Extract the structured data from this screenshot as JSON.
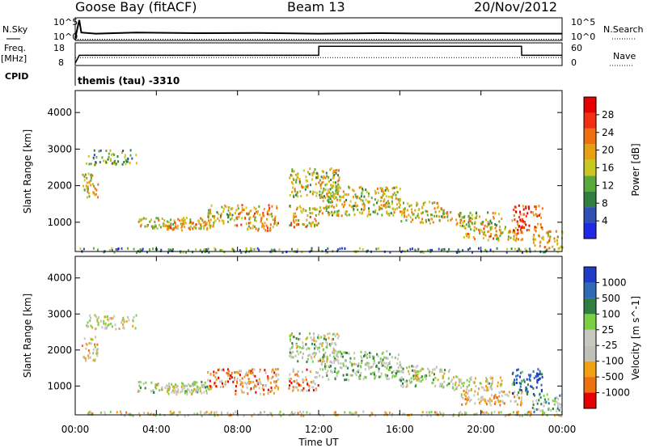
{
  "header": {
    "station": "Goose Bay (fitACF)",
    "beam": "Beam 13",
    "date": "20/Nov/2012"
  },
  "side_labels": {
    "nsky": "N.Sky",
    "freq": "Freq.",
    "freq_unit": "[MHz]",
    "cpid": "CPID",
    "nsearch": "N.Search",
    "nave": "Nave"
  },
  "cpid_text": "themis (tau) -3310",
  "colors": {
    "power_scale": [
      "#1e28e6",
      "#2f4fb4",
      "#2f8040",
      "#5aaa3a",
      "#c8c820",
      "#e6a010",
      "#f07010",
      "#f03010",
      "#e60000"
    ],
    "velocity_scale": [
      "#1e3cc8",
      "#2f6ab8",
      "#2f8040",
      "#7ad040",
      "#c8c8c0",
      "#c0c0b8",
      "#f0a010",
      "#f07010",
      "#e60000"
    ]
  },
  "chart_data": [
    {
      "type": "line",
      "name": "noise-panel",
      "left_axis": {
        "label": "N.Sky",
        "ticks": [
          "10^5",
          "10^0"
        ]
      },
      "right_axis": {
        "label": "N.Search",
        "ticks": [
          "10^5",
          "10^0"
        ]
      },
      "series": [
        {
          "style": "solid",
          "x_hours": [
            0,
            0.2,
            0.3,
            1,
            3,
            6,
            9,
            12,
            15,
            18,
            21,
            24
          ],
          "y_rel": [
            0.1,
            0.9,
            0.35,
            0.3,
            0.35,
            0.32,
            0.33,
            0.3,
            0.32,
            0.3,
            0.3,
            0.3
          ]
        },
        {
          "style": "dotted",
          "x_hours": [
            0,
            24
          ],
          "y_rel": [
            0.05,
            0.05
          ]
        }
      ]
    },
    {
      "type": "line",
      "name": "freq-nave-panel",
      "left_axis": {
        "label": "Freq. [MHz]",
        "ticks": [
          "18",
          "8"
        ]
      },
      "right_axis": {
        "label": "Nave",
        "ticks": [
          "60",
          "0"
        ]
      },
      "series": [
        {
          "style": "solid",
          "x_hours": [
            0,
            0.2,
            12,
            12.01,
            22,
            22.01,
            24
          ],
          "y_rel": [
            0.1,
            0.45,
            0.45,
            0.85,
            0.85,
            0.45,
            0.45
          ]
        },
        {
          "style": "dotted",
          "x_hours": [
            0,
            24
          ],
          "y_rel": [
            0.35,
            0.35
          ]
        }
      ]
    },
    {
      "type": "heatmap",
      "name": "power-panel",
      "ylabel": "Slant Range [km]",
      "x_ticks": [
        "00:00",
        "04:00",
        "08:00",
        "12:00",
        "16:00",
        "20:00",
        "00:00"
      ],
      "y_ticks": [
        1000,
        2000,
        3000,
        4000
      ],
      "ylim": [
        200,
        4600
      ],
      "colorbar": {
        "label": "Power [dB]",
        "ticks": [
          4,
          8,
          12,
          16,
          20,
          24,
          28
        ]
      }
    },
    {
      "type": "heatmap",
      "name": "velocity-panel",
      "ylabel": "Slant Range [km]",
      "xlabel": "Time UT",
      "x_ticks": [
        "00:00",
        "04:00",
        "08:00",
        "12:00",
        "16:00",
        "20:00",
        "00:00"
      ],
      "y_ticks": [
        1000,
        2000,
        3000,
        4000
      ],
      "ylim": [
        200,
        4600
      ],
      "colorbar": {
        "label": "Velocity [m s^-1]",
        "ticks": [
          1000,
          500,
          100,
          25,
          -25,
          -100,
          -500,
          -1000
        ]
      }
    }
  ],
  "bands": [
    {
      "t0": 0.3,
      "t1": 1.1,
      "r0": 1700,
      "r1": 2400,
      "p": 0.55,
      "v": 0.6
    },
    {
      "t0": 0.5,
      "t1": 3.0,
      "r0": 2600,
      "r1": 3000,
      "p": 0.4,
      "v": 0.55
    },
    {
      "t0": 3.0,
      "t1": 6.5,
      "r0": 850,
      "r1": 1150,
      "p": 0.55,
      "v": 0.5
    },
    {
      "t0": 4.5,
      "t1": 6.8,
      "r0": 800,
      "r1": 1100,
      "p": 0.6,
      "v": 0.5
    },
    {
      "t0": 6.5,
      "t1": 8.0,
      "r0": 1000,
      "r1": 1500,
      "p": 0.5,
      "v": 0.75
    },
    {
      "t0": 7.8,
      "t1": 10.0,
      "r0": 800,
      "r1": 1500,
      "p": 0.65,
      "v": 0.75
    },
    {
      "t0": 10.5,
      "t1": 12.0,
      "r0": 900,
      "r1": 1500,
      "p": 0.6,
      "v": 0.7
    },
    {
      "t0": 10.5,
      "t1": 13.0,
      "r0": 1700,
      "r1": 2500,
      "p": 0.5,
      "v": 0.5
    },
    {
      "t0": 12.0,
      "t1": 16.0,
      "r0": 1200,
      "r1": 2000,
      "p": 0.5,
      "v": 0.45
    },
    {
      "t0": 16.0,
      "t1": 18.5,
      "r0": 1000,
      "r1": 1600,
      "p": 0.55,
      "v": 0.5
    },
    {
      "t0": 18.5,
      "t1": 21.0,
      "r0": 900,
      "r1": 1300,
      "p": 0.5,
      "v": 0.55
    },
    {
      "t0": 19.0,
      "t1": 22.0,
      "r0": 500,
      "r1": 900,
      "p": 0.6,
      "v": 0.65
    },
    {
      "t0": 21.5,
      "t1": 23.0,
      "r0": 800,
      "r1": 1500,
      "p": 0.8,
      "v": 0.15
    },
    {
      "t0": 22.5,
      "t1": 24.0,
      "r0": 300,
      "r1": 800,
      "p": 0.6,
      "v": 0.4
    },
    {
      "t0": 0.2,
      "t1": 24.0,
      "r0": 200,
      "r1": 320,
      "p": 0.3,
      "v": 0.6
    }
  ]
}
